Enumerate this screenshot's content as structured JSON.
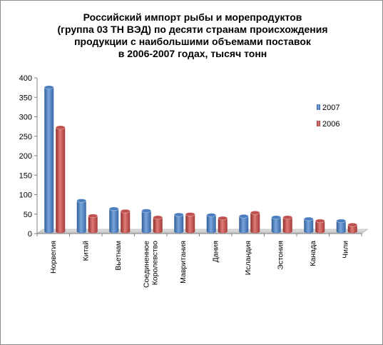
{
  "chart_data": {
    "type": "bar",
    "title_lines": [
      "Российский импорт рыбы и морепродуктов",
      "(группа 03 ТН ВЭД) по десяти странам происхождения",
      "продукции с наибольшими объемами поставок",
      "в 2006-2007 годах, тысяч тонн"
    ],
    "categories": [
      "Норвегия",
      "Китай",
      "Вьетнам",
      "Соединенное Королевство",
      "Мавритания",
      "Дания",
      "Исландия",
      "Эстония",
      "Канада",
      "Чили"
    ],
    "category_lines": [
      [
        "Норвегия"
      ],
      [
        "Китай"
      ],
      [
        "Вьетнам"
      ],
      [
        "Соединенное",
        "Королевство"
      ],
      [
        "Мавритания"
      ],
      [
        "Дания"
      ],
      [
        "Исландия"
      ],
      [
        "Эстония"
      ],
      [
        "Канада"
      ],
      [
        "Чили"
      ]
    ],
    "series": [
      {
        "name": "2007",
        "color": "#4a7ebf",
        "values": [
          370,
          79,
          58,
          53,
          43,
          42,
          39,
          36,
          32,
          27
        ]
      },
      {
        "name": "2006",
        "color": "#c0504d",
        "values": [
          267,
          40,
          52,
          36,
          44,
          34,
          48,
          36,
          27,
          17
        ]
      }
    ],
    "ylim": [
      0,
      400
    ],
    "yticks": [
      "0",
      "50",
      "100",
      "150",
      "200",
      "250",
      "300",
      "350",
      "400"
    ],
    "legend_position": "right",
    "grid": false
  }
}
